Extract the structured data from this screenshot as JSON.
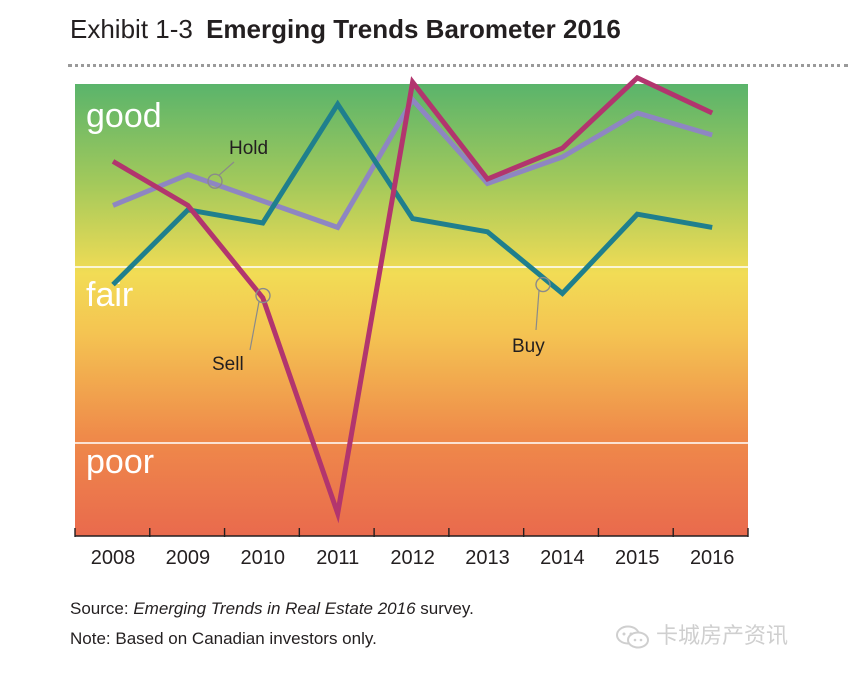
{
  "exhibit": {
    "number": "Exhibit 1-3",
    "title": "Emerging Trends Barometer 2016"
  },
  "chart_data": {
    "type": "line",
    "title": "Emerging Trends Barometer 2016",
    "categories": [
      "2008",
      "2009",
      "2010",
      "2011",
      "2012",
      "2013",
      "2014",
      "2015",
      "2016"
    ],
    "bands": [
      "good",
      "fair",
      "poor"
    ],
    "ylim": [
      0,
      10
    ],
    "band_lines": [
      5,
      1
    ],
    "series": [
      {
        "name": "Hold",
        "color": "#8e86c2",
        "values": [
          6.4,
          7.1,
          6.5,
          5.9,
          8.8,
          6.9,
          7.5,
          8.5,
          8.0
        ]
      },
      {
        "name": "Buy",
        "color": "#1f7f8d",
        "values": [
          4.6,
          6.3,
          6.0,
          8.7,
          6.1,
          5.8,
          4.4,
          6.2,
          5.9
        ]
      },
      {
        "name": "Sell",
        "color": "#b2356e",
        "values": [
          7.4,
          6.4,
          4.3,
          -0.6,
          9.2,
          7.0,
          7.7,
          9.3,
          8.5
        ]
      }
    ],
    "annotations": [
      {
        "label": "Hold",
        "series": "Hold",
        "at": "2009"
      },
      {
        "label": "Sell",
        "series": "Sell",
        "at": "2010"
      },
      {
        "label": "Buy",
        "series": "Buy",
        "at": "2014"
      }
    ]
  },
  "source": {
    "prefix": "Source: ",
    "title": "Emerging Trends in Real Estate 2016",
    "suffix": " survey."
  },
  "note": "Note: Based on Canadian investors only.",
  "watermark": "卡城房产资讯"
}
